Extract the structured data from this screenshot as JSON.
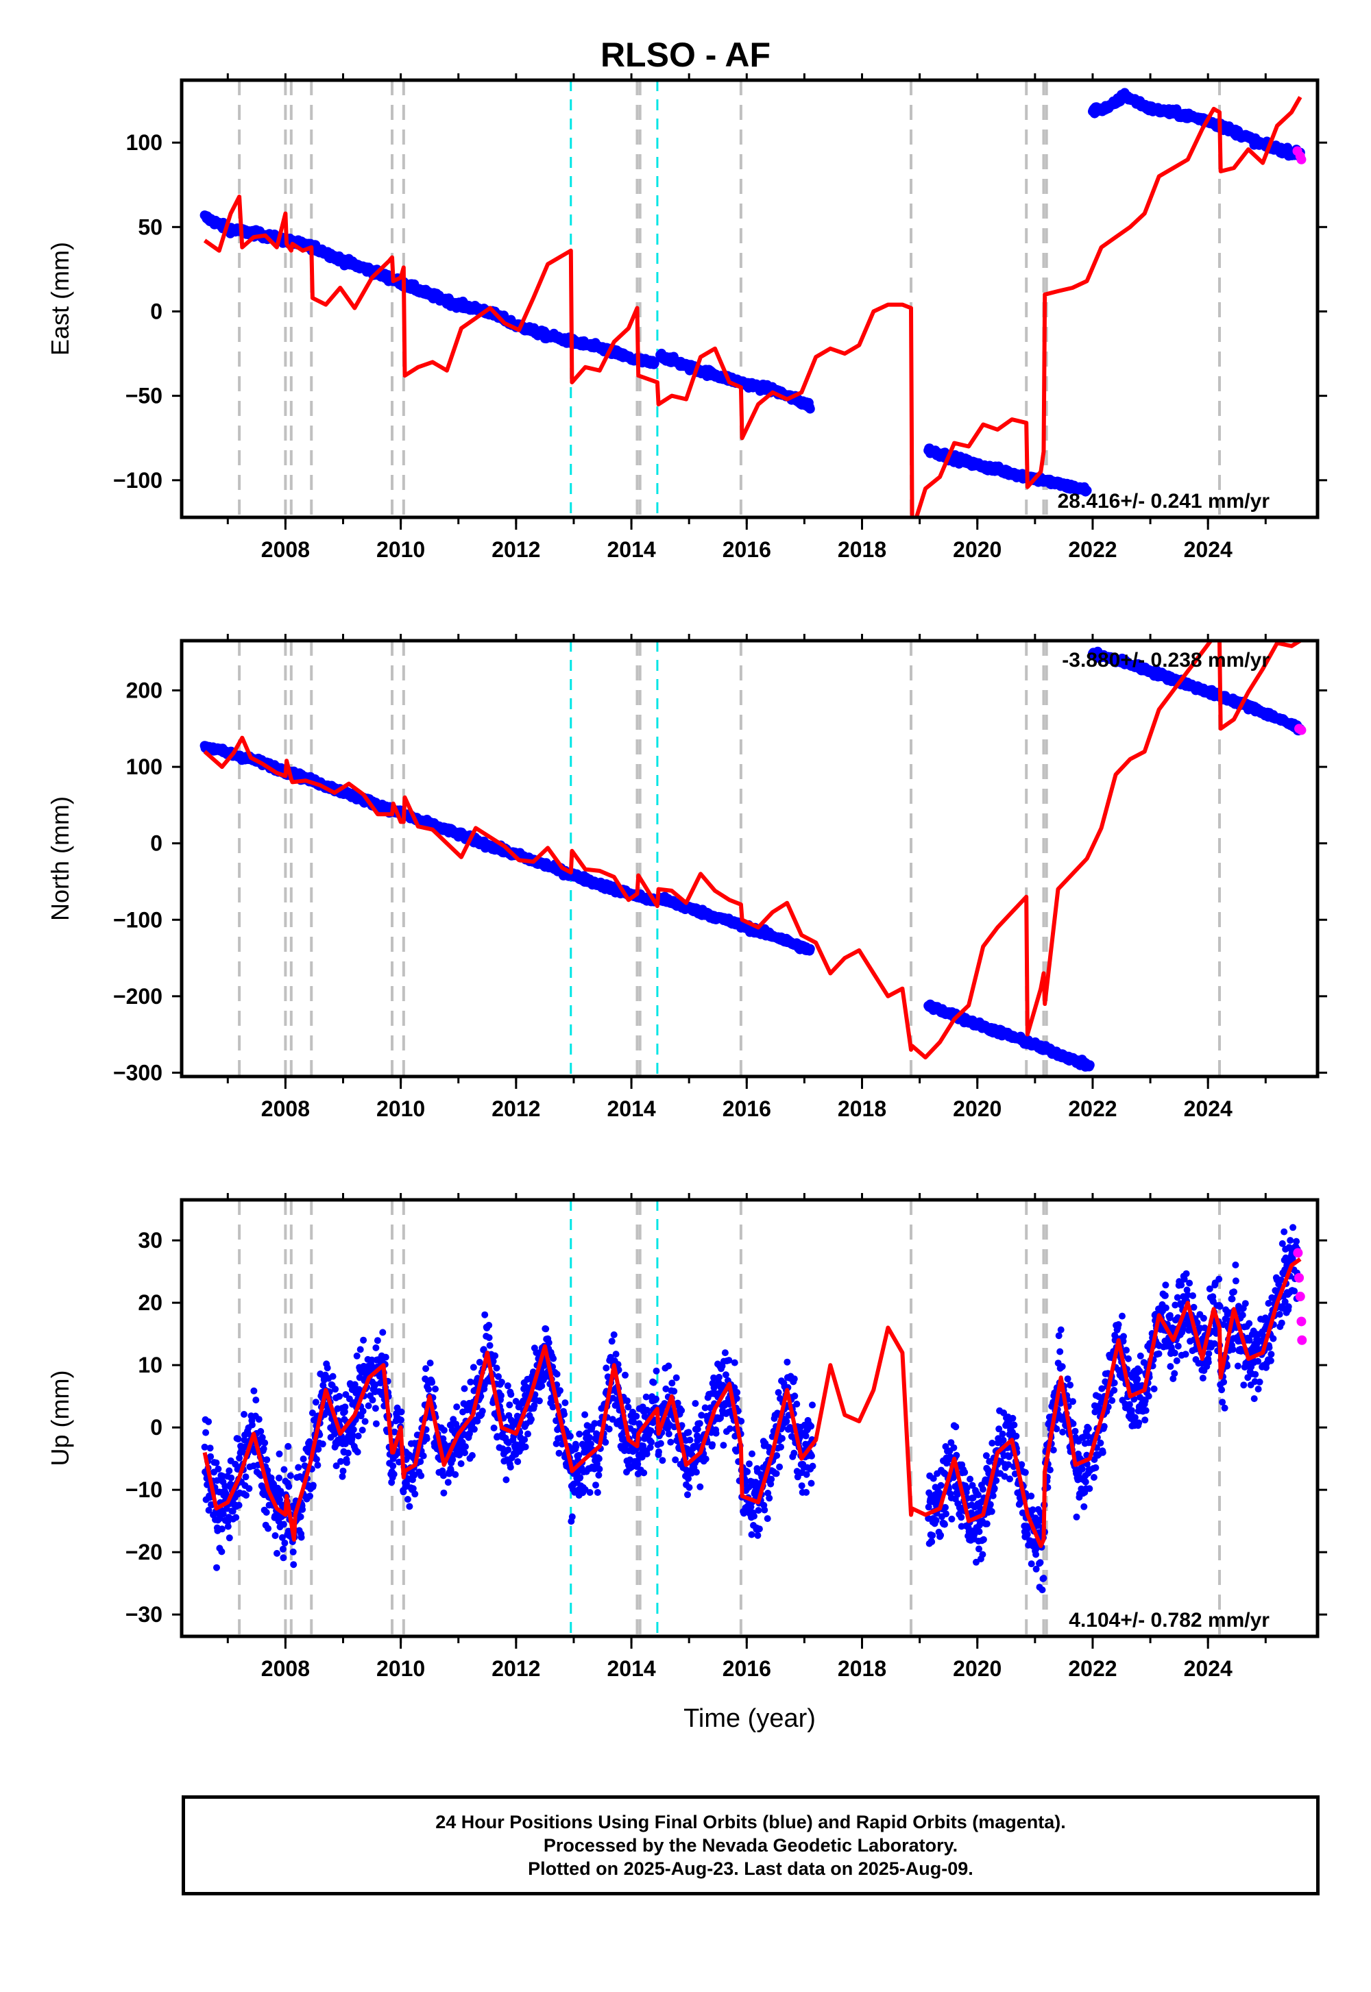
{
  "chart_data": {
    "title": "RLSO - AF",
    "xlabel": "Time (year)",
    "x_ticks": [
      2008,
      2010,
      2012,
      2014,
      2016,
      2018,
      2020,
      2022,
      2024
    ],
    "xlim": [
      2006.2,
      2025.9
    ],
    "colors": {
      "final_orbits": "#0000ff",
      "rapid_orbits": "#ff00ff",
      "model": "#ff0000",
      "equipment_change": "#c0c0c0",
      "earthquake": "#00e5e5"
    },
    "equipment_change_dates": [
      2007.2,
      2008.0,
      2008.1,
      2008.45,
      2009.85,
      2010.05,
      2014.1,
      2014.15,
      2015.9,
      2018.85,
      2020.85,
      2021.15,
      2021.2,
      2024.2
    ],
    "earthquake_dates": [
      2012.95,
      2014.45
    ],
    "panels": [
      {
        "type": "scatter",
        "ylabel": "East (mm)",
        "ylim": [
          -122,
          137
        ],
        "y_ticks": [
          -100,
          -50,
          0,
          50,
          100
        ],
        "rate_text": "28.416+/- 0.241 mm/yr",
        "final_segments": [
          {
            "x": [
              2006.6,
              2007.0,
              2007.5,
              2008.0,
              2008.5,
              2009.0,
              2009.5,
              2010.0,
              2010.5,
              2011.0,
              2011.5,
              2012.0,
              2012.5,
              2013.0,
              2013.5,
              2014.0,
              2014.4
            ],
            "y": [
              56,
              49,
              46,
              42,
              38,
              30,
              24,
              17,
              10,
              4,
              0,
              -8,
              -14,
              -18,
              -22,
              -28,
              -31
            ]
          },
          {
            "x": [
              2014.5,
              2015.0,
              2015.5,
              2016.0,
              2016.5,
              2017.1
            ],
            "y": [
              -26,
              -33,
              -38,
              -43,
              -47,
              -56
            ]
          },
          {
            "x": [
              2019.15,
              2019.5,
              2020.0,
              2020.5,
              2021.0,
              2021.5,
              2021.9
            ],
            "y": [
              -82,
              -86,
              -91,
              -95,
              -99,
              -103,
              -106
            ]
          },
          {
            "x": [
              2022.0,
              2022.3,
              2022.55,
              2023.0,
              2023.5,
              2024.0,
              2024.5,
              2025.0,
              2025.6
            ],
            "y": [
              119,
              121,
              128,
              120,
              117,
              113,
              106,
              98,
              93
            ]
          }
        ],
        "rapid_points": {
          "x": [
            2025.55,
            2025.6,
            2025.62
          ],
          "y": [
            95,
            92,
            90
          ]
        },
        "model": {
          "x": [
            2006.6,
            2006.85,
            2007.05,
            2007.2,
            2007.25,
            2007.45,
            2007.65,
            2007.85,
            2008.0,
            2008.02,
            2008.1,
            2008.12,
            2008.3,
            2008.45,
            2008.47,
            2008.7,
            2008.95,
            2009.2,
            2009.5,
            2009.8,
            2009.85,
            2009.87,
            2010.0,
            2010.05,
            2010.07,
            2010.3,
            2010.55,
            2010.8,
            2011.05,
            2011.3,
            2011.55,
            2011.8,
            2012.05,
            2012.3,
            2012.55,
            2012.8,
            2012.95,
            2012.97,
            2013.2,
            2013.45,
            2013.7,
            2013.95,
            2014.1,
            2014.12,
            2014.45,
            2014.47,
            2014.7,
            2014.95,
            2015.2,
            2015.45,
            2015.7,
            2015.9,
            2015.92,
            2016.2,
            2016.45,
            2016.7,
            2016.95,
            2017.2,
            2017.45,
            2017.7,
            2017.95,
            2018.2,
            2018.45,
            2018.7,
            2018.85,
            2018.87,
            2019.1,
            2019.35,
            2019.6,
            2019.85,
            2020.1,
            2020.35,
            2020.6,
            2020.85,
            2020.87,
            2021.1,
            2021.15,
            2021.17,
            2021.4,
            2021.65,
            2021.9,
            2022.15,
            2022.4,
            2022.65,
            2022.9,
            2023.15,
            2023.4,
            2023.65,
            2023.9,
            2024.1,
            2024.2,
            2024.22,
            2024.45,
            2024.7,
            2024.95,
            2025.2,
            2025.45,
            2025.6
          ],
          "y": [
            42,
            36,
            58,
            68,
            38,
            44,
            45,
            38,
            58,
            40,
            36,
            40,
            36,
            38,
            8,
            4,
            14,
            2,
            20,
            30,
            32,
            18,
            20,
            26,
            -38,
            -33,
            -30,
            -35,
            -10,
            -4,
            2,
            -7,
            -11,
            8,
            28,
            33,
            36,
            -42,
            -33,
            -35,
            -18,
            -10,
            2,
            -38,
            -42,
            -55,
            -50,
            -52,
            -27,
            -22,
            -42,
            -45,
            -75,
            -55,
            -48,
            -52,
            -48,
            -27,
            -22,
            -25,
            -20,
            0,
            4,
            4,
            2,
            -130,
            -105,
            -98,
            -78,
            -80,
            -67,
            -70,
            -64,
            -66,
            -104,
            -95,
            -83,
            10,
            12,
            14,
            18,
            38,
            44,
            50,
            58,
            80,
            85,
            90,
            108,
            120,
            118,
            83,
            85,
            96,
            88,
            110,
            118,
            127
          ]
        }
      },
      {
        "type": "scatter",
        "ylabel": "North (mm)",
        "ylim": [
          -305,
          265
        ],
        "y_ticks": [
          -300,
          -200,
          -100,
          0,
          100,
          200
        ],
        "rate_text": "-3.880+/- 0.238 mm/yr",
        "final_segments": [
          {
            "x": [
              2006.6,
              2007.0,
              2007.5,
              2008.0,
              2008.5,
              2009.0,
              2009.5,
              2010.0,
              2010.5,
              2011.0,
              2011.5,
              2012.0,
              2012.5,
              2013.0,
              2013.5,
              2014.0,
              2014.4
            ],
            "y": [
              127,
              118,
              108,
              94,
              81,
              67,
              53,
              39,
              25,
              12,
              -2,
              -15,
              -28,
              -42,
              -55,
              -67,
              -75
            ]
          },
          {
            "x": [
              2014.5,
              2015.0,
              2015.5,
              2016.0,
              2016.5,
              2017.1
            ],
            "y": [
              -72,
              -85,
              -97,
              -110,
              -122,
              -140
            ]
          },
          {
            "x": [
              2019.15,
              2019.5,
              2020.0,
              2020.5,
              2021.0,
              2021.5,
              2021.95
            ],
            "y": [
              -213,
              -222,
              -237,
              -250,
              -264,
              -278,
              -292
            ]
          },
          {
            "x": [
              2022.0,
              2022.5,
              2023.0,
              2023.5,
              2024.0,
              2024.5,
              2025.0,
              2025.6
            ],
            "y": [
              248,
              238,
              225,
              212,
              198,
              185,
              170,
              150
            ]
          }
        ],
        "rapid_points": {
          "x": [
            2025.58,
            2025.62
          ],
          "y": [
            150,
            148
          ]
        },
        "model": {
          "x": [
            2006.6,
            2006.9,
            2007.1,
            2007.25,
            2007.4,
            2007.6,
            2007.85,
            2008.0,
            2008.02,
            2008.1,
            2008.12,
            2008.35,
            2008.6,
            2008.85,
            2009.1,
            2009.35,
            2009.6,
            2009.85,
            2009.87,
            2010.0,
            2010.05,
            2010.07,
            2010.3,
            2010.55,
            2010.8,
            2011.05,
            2011.3,
            2011.55,
            2011.8,
            2012.05,
            2012.3,
            2012.55,
            2012.8,
            2012.95,
            2012.97,
            2013.2,
            2013.45,
            2013.7,
            2013.95,
            2014.1,
            2014.12,
            2014.45,
            2014.47,
            2014.7,
            2014.95,
            2015.2,
            2015.45,
            2015.7,
            2015.9,
            2015.92,
            2016.2,
            2016.45,
            2016.7,
            2016.95,
            2017.2,
            2017.45,
            2017.7,
            2017.95,
            2018.2,
            2018.45,
            2018.7,
            2018.85,
            2018.87,
            2019.1,
            2019.35,
            2019.6,
            2019.85,
            2020.1,
            2020.35,
            2020.6,
            2020.85,
            2020.87,
            2021.1,
            2021.15,
            2021.17,
            2021.4,
            2021.65,
            2021.9,
            2022.15,
            2022.4,
            2022.65,
            2022.9,
            2023.15,
            2023.4,
            2023.65,
            2023.9,
            2024.1,
            2024.2,
            2024.22,
            2024.45,
            2024.7,
            2024.95,
            2025.2,
            2025.45,
            2025.6
          ],
          "y": [
            120,
            100,
            118,
            138,
            112,
            104,
            92,
            88,
            108,
            84,
            80,
            82,
            76,
            66,
            78,
            64,
            38,
            38,
            52,
            28,
            28,
            60,
            22,
            18,
            0,
            -18,
            20,
            8,
            -4,
            -22,
            -24,
            -6,
            -32,
            -38,
            -10,
            -34,
            -36,
            -44,
            -74,
            -66,
            -42,
            -82,
            -60,
            -62,
            -78,
            -40,
            -62,
            -74,
            -80,
            -100,
            -110,
            -90,
            -78,
            -120,
            -130,
            -170,
            -150,
            -140,
            -170,
            -200,
            -190,
            -270,
            -265,
            -280,
            -260,
            -230,
            -212,
            -135,
            -110,
            -90,
            -70,
            -250,
            -190,
            -170,
            -210,
            -60,
            -40,
            -20,
            20,
            90,
            110,
            120,
            175,
            200,
            225,
            250,
            270,
            265,
            150,
            162,
            198,
            228,
            262,
            258,
            265
          ]
        }
      },
      {
        "type": "scatter",
        "ylabel": "Up (mm)",
        "ylim": [
          -33.5,
          36.5
        ],
        "y_ticks": [
          -30,
          -20,
          -10,
          0,
          10,
          20,
          30
        ],
        "rate_text": "4.104+/- 0.782 mm/yr",
        "final_ranges": [
          [
            2006.6,
            2017.15
          ],
          [
            2019.15,
            2021.95
          ],
          [
            2022.0,
            2025.55
          ]
        ],
        "rapid_points": {
          "x": [
            2025.56,
            2025.58,
            2025.6,
            2025.62,
            2025.63
          ],
          "y": [
            28,
            24,
            21,
            17,
            14
          ]
        },
        "model": {
          "x": [
            2006.6,
            2006.8,
            2007.0,
            2007.2,
            2007.45,
            2007.7,
            2007.85,
            2008.0,
            2008.02,
            2008.15,
            2008.17,
            2008.3,
            2008.45,
            2008.47,
            2008.7,
            2008.95,
            2009.2,
            2009.45,
            2009.7,
            2009.85,
            2009.87,
            2010.0,
            2010.05,
            2010.07,
            2010.25,
            2010.5,
            2010.75,
            2011.0,
            2011.25,
            2011.5,
            2011.75,
            2012.0,
            2012.25,
            2012.5,
            2012.75,
            2012.95,
            2012.97,
            2013.2,
            2013.45,
            2013.7,
            2013.95,
            2014.1,
            2014.12,
            2014.45,
            2014.47,
            2014.7,
            2014.95,
            2015.2,
            2015.45,
            2015.7,
            2015.9,
            2015.92,
            2016.2,
            2016.45,
            2016.7,
            2016.95,
            2017.2,
            2017.45,
            2017.7,
            2017.95,
            2018.2,
            2018.45,
            2018.7,
            2018.85,
            2018.87,
            2019.1,
            2019.35,
            2019.6,
            2019.85,
            2020.1,
            2020.35,
            2020.6,
            2020.85,
            2020.87,
            2021.1,
            2021.15,
            2021.17,
            2021.45,
            2021.7,
            2021.95,
            2022.2,
            2022.45,
            2022.65,
            2022.9,
            2023.15,
            2023.4,
            2023.65,
            2023.9,
            2024.1,
            2024.2,
            2024.22,
            2024.45,
            2024.7,
            2024.95,
            2025.2,
            2025.45,
            2025.6
          ],
          "y": [
            -4,
            -13,
            -12,
            -8,
            -1,
            -10,
            -13,
            -14,
            -11,
            -18,
            -14,
            -10,
            -5,
            -4,
            6,
            -1,
            2,
            8,
            10,
            -4,
            -4,
            0,
            -8,
            -7,
            -6,
            5,
            -6,
            -1,
            2,
            12,
            0,
            -1,
            5,
            13,
            2,
            -6,
            -7,
            -5,
            -3,
            10,
            -2,
            -3,
            -1,
            3,
            -1,
            5,
            -6,
            -4,
            3,
            7,
            -3,
            -11,
            -12,
            -4,
            6,
            -5,
            -2,
            10,
            2,
            1,
            6,
            16,
            12,
            -14,
            -13,
            -14,
            -13,
            -5,
            -15,
            -14,
            -4,
            -2,
            -13,
            -14,
            -19,
            -18,
            -7,
            8,
            -6,
            -5,
            3,
            14,
            5,
            6,
            18,
            14,
            20,
            11,
            19,
            16,
            8,
            19,
            11,
            12,
            20,
            26,
            27
          ]
        }
      }
    ],
    "footer_lines": [
      "24 Hour Positions Using Final Orbits (blue) and Rapid Orbits (magenta).",
      "Processed by the Nevada Geodetic Laboratory.",
      "Plotted on 2025-Aug-23. Last data on 2025-Aug-09."
    ]
  }
}
